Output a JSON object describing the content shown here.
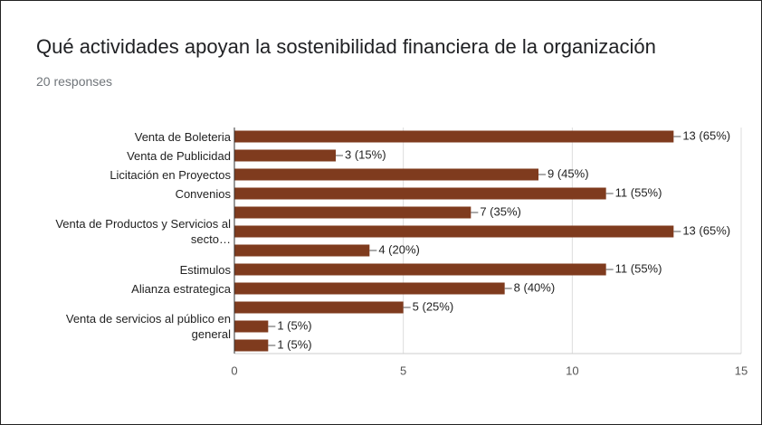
{
  "chart_data": {
    "type": "bar",
    "orientation": "horizontal",
    "title": "Qué actividades apoyan la sostenibilidad financiera de la organización",
    "subtitle": "20 responses",
    "categories": [
      "Venta de Boleteria",
      "Venta de Publicidad",
      "Licitación en Proyectos",
      "Convenios",
      null,
      "Venta de Productos y Servicios al secto…",
      null,
      "Estimulos",
      "Alianza estrategica",
      null,
      "Venta de servicios al público en general",
      null
    ],
    "values": [
      13,
      3,
      9,
      11,
      7,
      13,
      4,
      11,
      8,
      5,
      1,
      1
    ],
    "value_labels": [
      "13 (65%)",
      "3 (15%)",
      "9 (45%)",
      "11 (55%)",
      "7 (35%)",
      "13 (65%)",
      "4 (20%)",
      "11 (55%)",
      "8 (40%)",
      "5 (25%)",
      "1 (5%)",
      "1 (5%)"
    ],
    "color": "#7f3b1e",
    "xlim": [
      0,
      15
    ],
    "xticks": [
      0,
      5,
      10,
      15
    ],
    "grid": true
  }
}
